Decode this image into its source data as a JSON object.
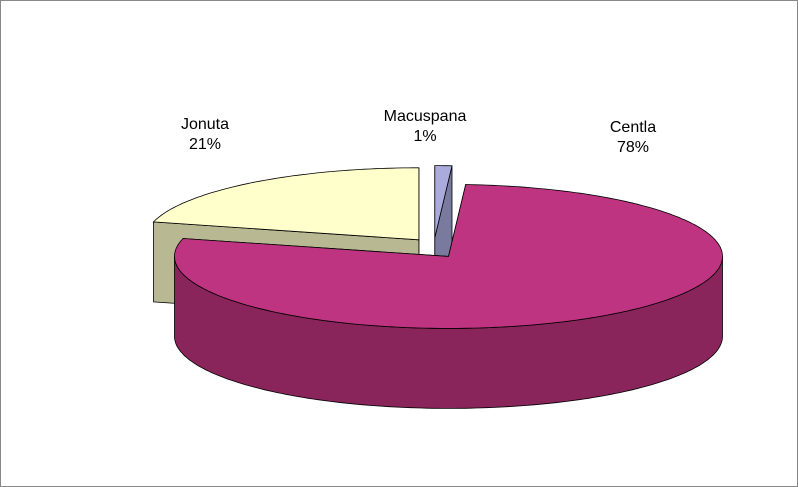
{
  "chart_data": {
    "type": "pie",
    "3d": true,
    "exploded": true,
    "categories": [
      "Jonuta",
      "Macuspana",
      "Centla"
    ],
    "values": [
      21,
      1,
      78
    ],
    "value_labels": [
      "21%",
      "1%",
      "78%"
    ],
    "colors": [
      "#ffffcc",
      "#aaaadd",
      "#bf3480"
    ]
  }
}
